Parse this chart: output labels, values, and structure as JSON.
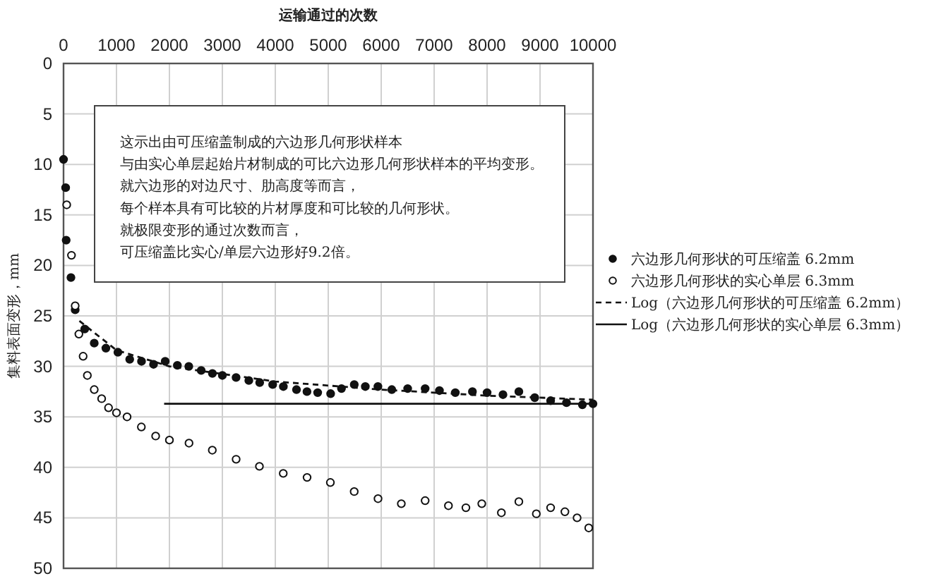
{
  "chart_data": {
    "type": "scatter",
    "xlabel": "运输通过的次数",
    "ylabel": "集料表面变形，mm",
    "xlim": [
      0,
      10000
    ],
    "xticks": [
      0,
      1000,
      2000,
      3000,
      4000,
      5000,
      6000,
      7000,
      8000,
      9000,
      10000
    ],
    "ylim": [
      50,
      0
    ],
    "yticks": [
      0,
      5,
      10,
      15,
      20,
      25,
      30,
      35,
      40,
      45,
      50
    ],
    "grid": true,
    "legend": "right",
    "annotations": [
      "这示出由可压缩盖制成的六边形几何形状样本",
      "与由实心单层起始片材制成的可比六边形几何形状样本的平均变形。",
      "就六边形的对边尺寸、肋高度等而言，",
      "每个样本具有可比较的片材厚度和可比较的几何形状。",
      "就极限变形的通过次数而言，",
      "可压缩盖比实心/单层六边形好9.2倍。"
    ],
    "series": [
      {
        "name": "六边形几何形状的可压缩盖 6.2mm",
        "marker": "circle",
        "color": "#111111",
        "x": [
          0,
          40,
          50,
          140,
          220,
          400,
          580,
          800,
          1027,
          1250,
          1473,
          1700,
          1920,
          2150,
          2366,
          2600,
          2812,
          3000,
          3259,
          3500,
          3705,
          3950,
          4152,
          4400,
          4598,
          4800,
          5045,
          5250,
          5491,
          5700,
          5938,
          6200,
          6500,
          6830,
          7100,
          7400,
          7723,
          8000,
          8300,
          8600,
          8900,
          9200,
          9500,
          9800,
          10000
        ],
        "values": [
          9.5,
          12.3,
          17.5,
          21.2,
          24.4,
          26.3,
          27.7,
          28.2,
          28.6,
          29.3,
          29.5,
          29.8,
          29.5,
          29.9,
          30,
          30.4,
          30.7,
          30.9,
          31.1,
          31.4,
          31.6,
          31.8,
          32,
          32.3,
          32.5,
          32.6,
          32.7,
          32.2,
          31.8,
          32,
          32,
          32.3,
          32.2,
          32.2,
          32.4,
          32.6,
          32.5,
          32.6,
          32.8,
          32.5,
          33.1,
          33.4,
          33.6,
          33.8,
          33.7
        ]
      },
      {
        "name": "六边形几何形状的实心单层 6.3mm",
        "marker": "circle",
        "color": "#111111",
        "x": [
          60,
          150,
          220,
          290,
          370,
          450,
          580,
          720,
          850,
          1000,
          1200,
          1470,
          1740,
          2000,
          2370,
          2810,
          3260,
          3700,
          4150,
          4600,
          5040,
          5490,
          5940,
          6380,
          6830,
          7270,
          7600,
          7900,
          8270,
          8600,
          8930,
          9200,
          9470,
          9700,
          9920
        ],
        "values": [
          14,
          19,
          24,
          26.8,
          29,
          30.9,
          32.3,
          33.2,
          34.1,
          34.6,
          35,
          36,
          36.9,
          37.3,
          37.6,
          38.3,
          39.2,
          39.9,
          40.6,
          41,
          41.5,
          42.4,
          43.1,
          43.6,
          43.3,
          43.8,
          44,
          43.6,
          44.5,
          43.4,
          44.6,
          44,
          44.4,
          45,
          46
        ]
      },
      {
        "name": "Log（六边形几何形状的可压缩盖 6.2mm）",
        "type": "line",
        "marker": "none",
        "line_style": "dashed",
        "color": "#111111",
        "x": [
          300,
          1000,
          2000,
          4000,
          6000,
          8000,
          10000
        ],
        "values": [
          25.5,
          28.4,
          30,
          31.5,
          32.3,
          32.9,
          33.3
        ]
      },
      {
        "name": "Log（六边形几何形状的实心单层 6.3mm）",
        "type": "line",
        "marker": "none",
        "line_style": "solid",
        "color": "#111111",
        "x": [
          1900,
          10000
        ],
        "values": [
          33.7,
          33.7
        ]
      }
    ]
  }
}
